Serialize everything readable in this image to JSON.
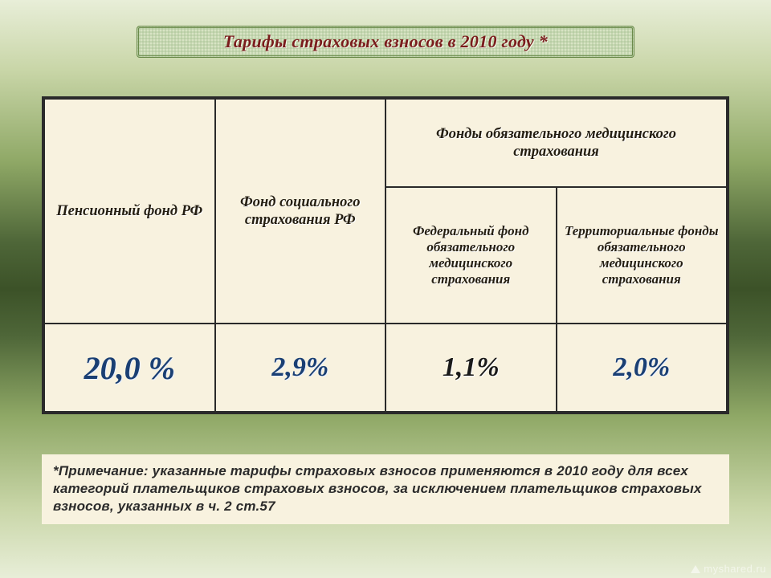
{
  "title": "Тарифы страховых взносов в 2010 году *",
  "table": {
    "columns": [
      "Пенсионный фонд РФ",
      "Фонд социального страхования РФ",
      "Фонды обязательного медицинского страхования"
    ],
    "sub_columns": [
      "Федеральный фонд обязательного медицинского страхования",
      "Территориальные фонды обязательного медицинского страхования"
    ],
    "values": [
      "20,0 %",
      "2,9%",
      "1,1%",
      "2,0%"
    ],
    "value_colors": [
      "#1a3f73",
      "#1a3f73",
      "#1a1a1a",
      "#1a3f73"
    ],
    "value_fontsizes": [
      40,
      34,
      34,
      34
    ],
    "background_color": "#f8f2df",
    "border_color": "#2a2a2a",
    "header_fontsize": 18.5,
    "subheader_fontsize": 17
  },
  "note": "*Примечание: указанные тарифы страховых взносов применяются в 2010 году для всех категорий плательщиков страховых взносов, за исключением плательщиков страховых взносов, указанных в ч. 2 ст.57",
  "watermark": "myshared.ru",
  "title_style": {
    "color": "#7a1c1c",
    "fontsize": 22,
    "border_color": "#6a8a4a",
    "background_color": "#d8e4c4"
  },
  "slide_background_gradient": [
    "#e8eed8",
    "#3c5228",
    "#e8eed8"
  ]
}
